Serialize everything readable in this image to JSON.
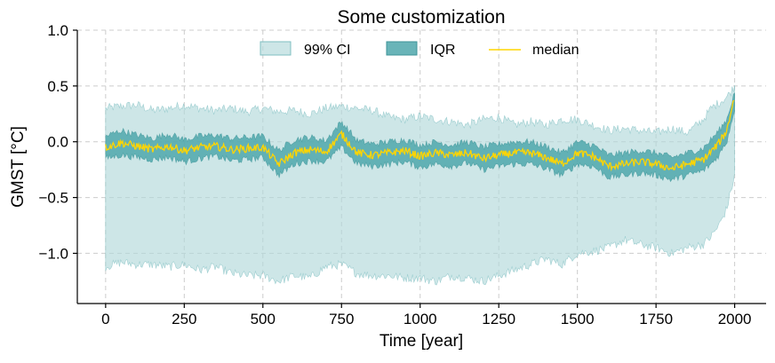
{
  "chart_data": {
    "type": "area",
    "title": "Some customization",
    "xlabel": "Time [year]",
    "ylabel": "GMST [°C]",
    "xlim": [
      -90,
      2100
    ],
    "ylim": [
      -1.45,
      1.0
    ],
    "x_ticks": [
      0,
      250,
      500,
      750,
      1000,
      1250,
      1500,
      1750,
      2000
    ],
    "y_ticks": [
      1.0,
      0.5,
      0.0,
      -0.5,
      -1.0
    ],
    "x_tick_labels": [
      "0",
      "250",
      "500",
      "750",
      "1000",
      "1250",
      "1500",
      "1750",
      "2000"
    ],
    "y_tick_labels": [
      "1.0",
      "0.5",
      "0.0",
      "−0.5",
      "−1.0"
    ],
    "grid": true,
    "legend_position": "top-center",
    "colors": {
      "ci99": "#b2d8da",
      "ci99_edge": "#7fbfc2",
      "iqr": "#4fa7ab",
      "iqr_edge": "#3f9599",
      "median": "#ffd500",
      "grid": "#cccccc"
    },
    "series": [
      {
        "name": "99% CI",
        "kind": "band",
        "x": [
          0,
          50,
          100,
          150,
          200,
          250,
          300,
          350,
          400,
          450,
          500,
          550,
          600,
          650,
          700,
          750,
          800,
          850,
          900,
          950,
          1000,
          1050,
          1100,
          1150,
          1200,
          1250,
          1300,
          1350,
          1400,
          1450,
          1500,
          1550,
          1600,
          1650,
          1700,
          1750,
          1800,
          1850,
          1900,
          1925,
          1950,
          1975,
          2000
        ],
        "lower": [
          -1.12,
          -1.08,
          -1.1,
          -1.1,
          -1.12,
          -1.1,
          -1.15,
          -1.12,
          -1.18,
          -1.2,
          -1.2,
          -1.25,
          -1.2,
          -1.22,
          -1.12,
          -1.1,
          -1.18,
          -1.2,
          -1.2,
          -1.22,
          -1.22,
          -1.25,
          -1.2,
          -1.22,
          -1.25,
          -1.2,
          -1.15,
          -1.1,
          -1.05,
          -1.1,
          -1.0,
          -0.98,
          -0.95,
          -0.88,
          -0.92,
          -0.95,
          -1.0,
          -0.95,
          -0.92,
          -0.85,
          -0.75,
          -0.6,
          -0.3
        ],
        "upper": [
          0.3,
          0.32,
          0.33,
          0.28,
          0.3,
          0.33,
          0.3,
          0.28,
          0.3,
          0.27,
          0.3,
          0.27,
          0.28,
          0.25,
          0.3,
          0.32,
          0.3,
          0.28,
          0.22,
          0.2,
          0.23,
          0.2,
          0.18,
          0.15,
          0.2,
          0.22,
          0.15,
          0.18,
          0.15,
          0.2,
          0.2,
          0.15,
          0.1,
          0.12,
          0.1,
          0.08,
          0.12,
          0.08,
          0.2,
          0.3,
          0.35,
          0.4,
          0.5
        ]
      },
      {
        "name": "IQR",
        "kind": "band",
        "x": [
          0,
          50,
          100,
          150,
          200,
          250,
          300,
          350,
          400,
          450,
          500,
          550,
          600,
          650,
          700,
          750,
          800,
          850,
          900,
          950,
          1000,
          1050,
          1100,
          1150,
          1200,
          1250,
          1300,
          1350,
          1400,
          1450,
          1500,
          1550,
          1600,
          1650,
          1700,
          1750,
          1800,
          1850,
          1900,
          1925,
          1950,
          1975,
          2000
        ],
        "lower": [
          -0.15,
          -0.12,
          -0.14,
          -0.16,
          -0.14,
          -0.18,
          -0.15,
          -0.13,
          -0.17,
          -0.16,
          -0.14,
          -0.3,
          -0.2,
          -0.17,
          -0.18,
          -0.05,
          -0.2,
          -0.22,
          -0.2,
          -0.18,
          -0.23,
          -0.2,
          -0.22,
          -0.19,
          -0.25,
          -0.22,
          -0.2,
          -0.2,
          -0.24,
          -0.3,
          -0.2,
          -0.22,
          -0.32,
          -0.3,
          -0.28,
          -0.3,
          -0.34,
          -0.3,
          -0.26,
          -0.2,
          -0.12,
          0.0,
          0.3
        ],
        "upper": [
          0.05,
          0.1,
          0.06,
          0.03,
          0.07,
          0.02,
          0.05,
          0.06,
          0.03,
          0.04,
          0.05,
          -0.08,
          0.02,
          0.04,
          0.01,
          0.18,
          0.01,
          -0.02,
          0.0,
          0.02,
          -0.03,
          0.0,
          -0.03,
          0.0,
          -0.05,
          -0.02,
          0.0,
          0.0,
          -0.04,
          -0.1,
          0.0,
          -0.03,
          -0.12,
          -0.1,
          -0.08,
          -0.1,
          -0.14,
          -0.1,
          -0.06,
          0.02,
          0.1,
          0.2,
          0.45
        ]
      },
      {
        "name": "median",
        "kind": "line",
        "x": [
          0,
          50,
          100,
          150,
          200,
          250,
          300,
          350,
          400,
          450,
          500,
          550,
          600,
          650,
          700,
          750,
          800,
          850,
          900,
          950,
          1000,
          1050,
          1100,
          1150,
          1200,
          1250,
          1300,
          1350,
          1400,
          1450,
          1500,
          1550,
          1600,
          1650,
          1700,
          1750,
          1800,
          1850,
          1900,
          1925,
          1950,
          1975,
          2000
        ],
        "y": [
          -0.05,
          -0.01,
          -0.04,
          -0.07,
          -0.04,
          -0.08,
          -0.05,
          -0.04,
          -0.07,
          -0.06,
          -0.05,
          -0.2,
          -0.1,
          -0.07,
          -0.09,
          0.07,
          -0.1,
          -0.12,
          -0.1,
          -0.08,
          -0.13,
          -0.1,
          -0.12,
          -0.1,
          -0.15,
          -0.12,
          -0.1,
          -0.1,
          -0.14,
          -0.2,
          -0.1,
          -0.13,
          -0.22,
          -0.2,
          -0.18,
          -0.2,
          -0.24,
          -0.2,
          -0.16,
          -0.09,
          -0.01,
          0.1,
          0.42
        ]
      }
    ]
  }
}
